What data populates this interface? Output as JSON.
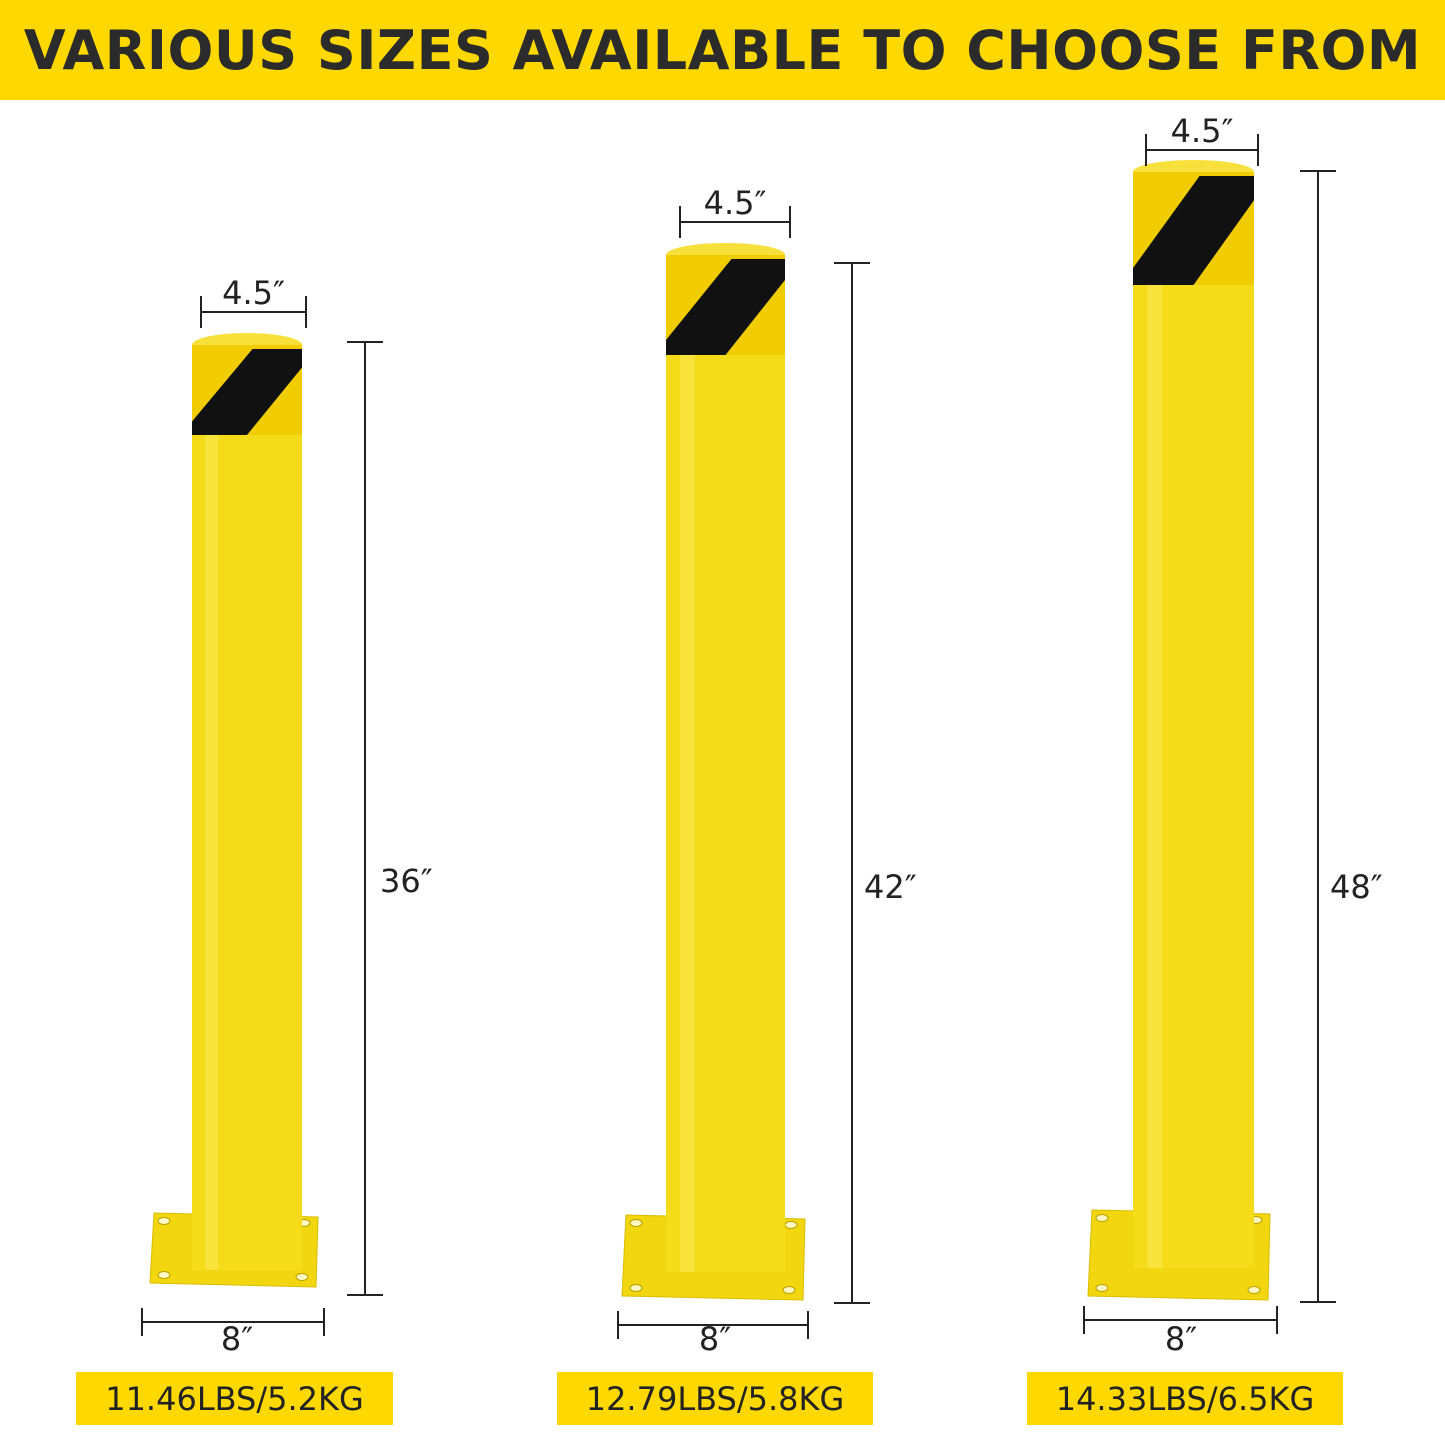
{
  "banner": {
    "title": "VARIOUS SIZES AVAILABLE TO CHOOSE FROM"
  },
  "colors": {
    "bollard_yellow": "#f5dc1a",
    "stripe_black": "#111111",
    "banner_yellow": "#ffd800",
    "text": "#222222"
  },
  "bollards": [
    {
      "diameter": "4.5″",
      "height": "36″",
      "base": "8″",
      "weight": "11.46LBS/5.2KG"
    },
    {
      "diameter": "4.5″",
      "height": "42″",
      "base": "8″",
      "weight": "12.79LBS/5.8KG"
    },
    {
      "diameter": "4.5″",
      "height": "48″",
      "base": "8″",
      "weight": "14.33LBS/6.5KG"
    }
  ]
}
